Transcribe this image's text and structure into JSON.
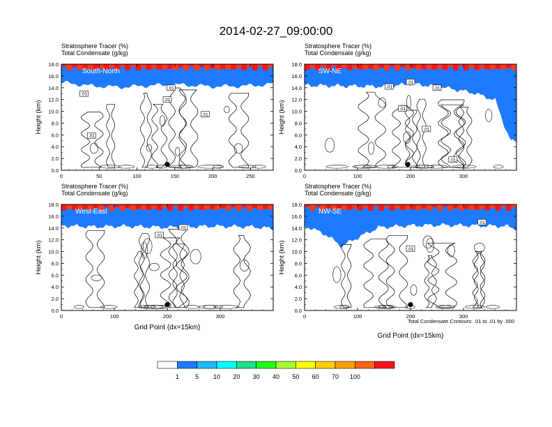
{
  "title": "2014-02-27_09:00:00",
  "panel_line1": "Stratosphere Tracer   (%)",
  "panel_line2": "Total Condensate   (g/kg)",
  "ylabel": "Height (km)",
  "xlabel": "Grid Point (dx=15km)",
  "contour_note": "Total Condensate Contours: .01 to .01 by .000",
  "contour_label": ".01",
  "colors": {
    "bands": [
      "#ffffff",
      "#1e7bff",
      "#21b8ff",
      "#00ffff",
      "#1fe08a",
      "#20ff20",
      "#a5ff2f",
      "#ffff00",
      "#ffcc00",
      "#ffa000",
      "#ff6418",
      "#ff1414"
    ],
    "contour": "#000000"
  },
  "colorbar": {
    "labels": [
      "1",
      "5",
      "10",
      "20",
      "30",
      "40",
      "50",
      "60",
      "70",
      "100"
    ],
    "colors": [
      "#ffffff",
      "#1e7bff",
      "#21b8ff",
      "#00ffff",
      "#1fe08a",
      "#20ff20",
      "#a5ff2f",
      "#ffff00",
      "#ffcc00",
      "#ffa000",
      "#ff6418",
      "#ff1414"
    ]
  },
  "chart_data": [
    {
      "type": "heatmap",
      "name": "South-North",
      "xlim": [
        0,
        280
      ],
      "xticks": [
        0,
        50,
        100,
        150,
        200,
        250
      ],
      "ylim": [
        0,
        18
      ],
      "yticks": [
        "0.0",
        "2.0",
        "4.0",
        "6.0",
        "8.0",
        "10.0",
        "12.0",
        "14.0",
        "16.0",
        "18.0"
      ],
      "marker": {
        "x": 140,
        "y": 1.0
      },
      "tropopause": [
        [
          0,
          16
        ],
        [
          40,
          15.4
        ],
        [
          80,
          15.2
        ],
        [
          120,
          15.5
        ],
        [
          160,
          15.6
        ],
        [
          200,
          15.3
        ],
        [
          240,
          15.4
        ],
        [
          270,
          15.6
        ],
        [
          280,
          15.8
        ]
      ],
      "contour_labels": [
        {
          "x": 30,
          "y": 13
        },
        {
          "x": 145,
          "y": 14
        },
        {
          "x": 140,
          "y": 12
        },
        {
          "x": 190,
          "y": 9.5
        },
        {
          "x": 40,
          "y": 5.9
        }
      ]
    },
    {
      "type": "heatmap",
      "name": "SW-NE",
      "xlim": [
        0,
        400
      ],
      "xticks": [
        0,
        100,
        200,
        300
      ],
      "ylim": [
        0,
        18
      ],
      "yticks": [
        "0.0",
        "2.0",
        "4.0",
        "6.0",
        "8.0",
        "10.0",
        "12.0",
        "14.0",
        "16.0",
        "18.0"
      ],
      "marker": {
        "x": 195,
        "y": 1.0
      },
      "tropopause": [
        [
          0,
          15.5
        ],
        [
          80,
          15.4
        ],
        [
          160,
          15.3
        ],
        [
          200,
          15.8
        ],
        [
          260,
          15.2
        ],
        [
          320,
          14.2
        ],
        [
          360,
          13.0
        ],
        [
          380,
          8
        ],
        [
          390,
          6
        ],
        [
          400,
          6
        ]
      ],
      "contour_labels": [
        {
          "x": 160,
          "y": 14.2
        },
        {
          "x": 200,
          "y": 15
        },
        {
          "x": 250,
          "y": 14
        },
        {
          "x": 185,
          "y": 10.5
        },
        {
          "x": 230,
          "y": 7
        },
        {
          "x": 280,
          "y": 1.8
        }
      ]
    },
    {
      "type": "heatmap",
      "name": "West-East",
      "xlim": [
        0,
        400
      ],
      "xticks": [
        0,
        100,
        200,
        300
      ],
      "ylim": [
        0,
        18
      ],
      "yticks": [
        "0.0",
        "2.0",
        "4.0",
        "6.0",
        "8.0",
        "10.0",
        "12.0",
        "14.0",
        "16.0",
        "18.0"
      ],
      "marker": {
        "x": 200,
        "y": 1.0
      },
      "tropopause": [
        [
          0,
          15.5
        ],
        [
          60,
          15.3
        ],
        [
          120,
          15.4
        ],
        [
          200,
          15.2
        ],
        [
          280,
          15.4
        ],
        [
          360,
          15.3
        ],
        [
          400,
          15.0
        ]
      ],
      "contour_labels": [
        {
          "x": 230,
          "y": 14.1
        },
        {
          "x": 185,
          "y": 12.8
        }
      ]
    },
    {
      "type": "heatmap",
      "name": "NW-SE",
      "xlim": [
        0,
        400
      ],
      "xticks": [
        0,
        100,
        200,
        300
      ],
      "ylim": [
        0,
        18
      ],
      "yticks": [
        "0.0",
        "2.0",
        "4.0",
        "6.0",
        "8.0",
        "10.0",
        "12.0",
        "14.0",
        "16.0",
        "18.0"
      ],
      "marker": {
        "x": 200,
        "y": 1.0
      },
      "tropopause": [
        [
          0,
          15.5
        ],
        [
          40,
          14
        ],
        [
          70,
          12
        ],
        [
          90,
          13
        ],
        [
          140,
          15.2
        ],
        [
          200,
          15.5
        ],
        [
          260,
          15.6
        ],
        [
          320,
          15.5
        ],
        [
          380,
          15.4
        ],
        [
          400,
          15.0
        ]
      ],
      "contour_labels": [
        {
          "x": 335,
          "y": 15
        },
        {
          "x": 200,
          "y": 10.5
        }
      ]
    }
  ]
}
